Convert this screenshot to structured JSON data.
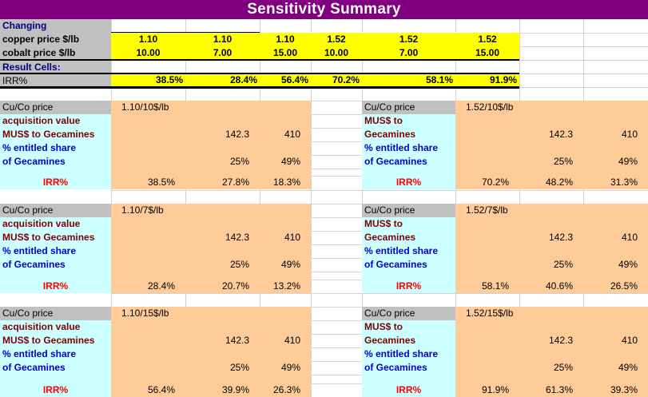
{
  "title": "Sensitivity  Summary",
  "summary": {
    "changing_label": "Changing",
    "copper_label": "copper price $/lb",
    "cobalt_label": "cobalt price $/lb",
    "result_label": "Result Cells:",
    "irr_label": "IRR%",
    "copper": [
      "1.10",
      "1.10",
      "1.10",
      "1.52",
      "1.52",
      "1.52"
    ],
    "cobalt": [
      "10.00",
      "7.00",
      "15.00",
      "10.00",
      "7.00",
      "15.00"
    ],
    "irr": [
      "38.5%",
      "28.4%",
      "56.4%",
      "70.2%",
      "58.1%",
      "91.9%"
    ]
  },
  "blocks": [
    {
      "side": "left",
      "header_label": "Cu/Co price",
      "price": "1.10/10$/lb",
      "label1a": "acquisition value",
      "label1b": "MUS$ to Gecamines",
      "label2a": "% entitled share",
      "label2b": "of Gecamines",
      "mus": [
        "142.3",
        "410"
      ],
      "share": [
        "25%",
        "49%"
      ],
      "irr_label": "IRR%",
      "irr": [
        "38.5%",
        "27.8%",
        "18.3%"
      ]
    },
    {
      "side": "right",
      "header_label": "Cu/Co price",
      "price": "1.52/10$/lb",
      "label1a": "MUS$ to",
      "label1b": "Gecamines",
      "label2a": "% entitled share",
      "label2b": "of Gecamines",
      "mus": [
        "142.3",
        "410"
      ],
      "share": [
        "25%",
        "49%"
      ],
      "irr_label": "IRR%",
      "irr": [
        "70.2%",
        "48.2%",
        "31.3%"
      ]
    },
    {
      "side": "left",
      "header_label": "Cu/Co price",
      "price": "1.10/7$/lb",
      "label1a": "acquisition value",
      "label1b": "MUS$ to Gecamines",
      "label2a": "% entitled share",
      "label2b": "of Gecamines",
      "mus": [
        "142.3",
        "410"
      ],
      "share": [
        "25%",
        "49%"
      ],
      "irr_label": "IRR%",
      "irr": [
        "28.4%",
        "20.7%",
        "13.2%"
      ]
    },
    {
      "side": "right",
      "header_label": "Cu/Co price",
      "price": "1.52/7$/lb",
      "label1a": "MUS$ to",
      "label1b": "Gecamines",
      "label2a": "% entitled share",
      "label2b": "of Gecamines",
      "mus": [
        "142.3",
        "410"
      ],
      "share": [
        "25%",
        "49%"
      ],
      "irr_label": "IRR%",
      "irr": [
        "58.1%",
        "40.6%",
        "26.5%"
      ]
    },
    {
      "side": "left",
      "header_label": "Cu/Co price",
      "price": "1.10/15$/lb",
      "label1a": "acquisition value",
      "label1b": "MUS$ to Gecamines",
      "label2a": "% entitled share",
      "label2b": "of Gecamines",
      "mus": [
        "142.3",
        "410"
      ],
      "share": [
        "25%",
        "49%"
      ],
      "irr_label": "IRR%",
      "irr": [
        "56.4%",
        "39.9%",
        "26.3%"
      ]
    },
    {
      "side": "right",
      "header_label": "Cu/Co price",
      "price": "1.52/15$/lb",
      "label1a": "MUS$ to",
      "label1b": "Gecamines",
      "label2a": "% entitled share",
      "label2b": "of Gecamines",
      "mus": [
        "142.3",
        "410"
      ],
      "share": [
        "25%",
        "49%"
      ],
      "irr_label": "IRR%",
      "irr": [
        "91.9%",
        "61.3%",
        "39.3%"
      ]
    }
  ],
  "colors": {
    "title_bg": "#800080",
    "label_bg": "#c0c0c0",
    "input_bg": "#ffff00",
    "value_bg": "#ffcc99",
    "label_cell_bg": "#ccffff"
  }
}
